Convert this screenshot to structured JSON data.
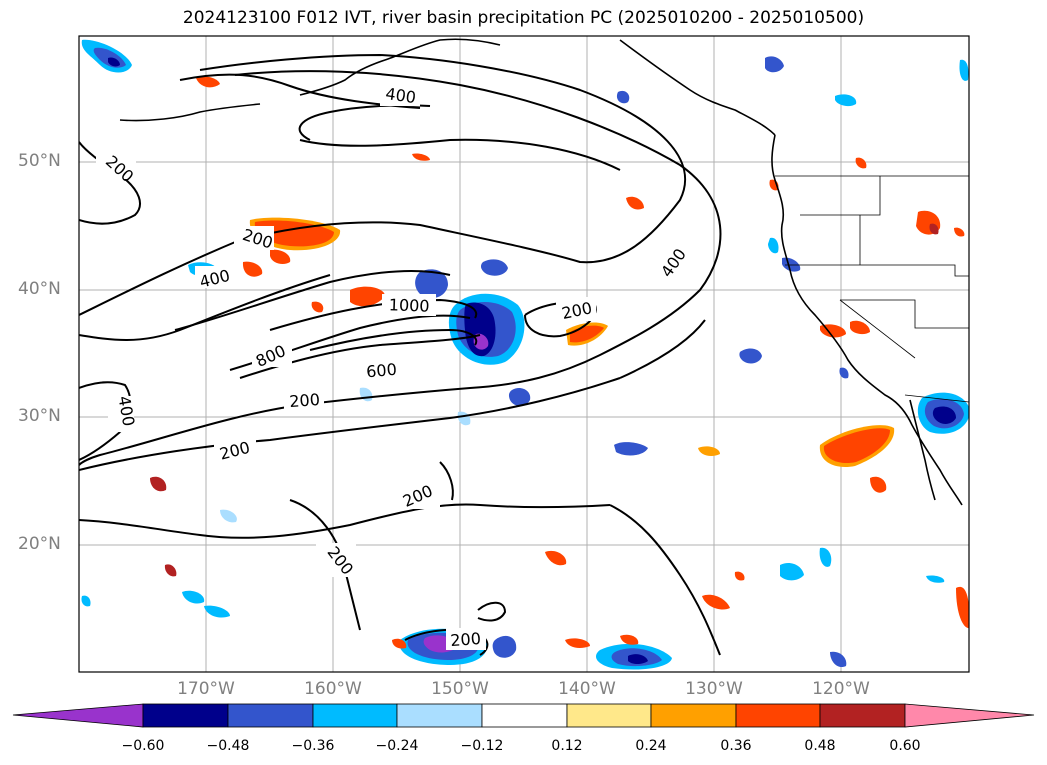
{
  "title": "2024123100 F012 IVT, river basin precipitation PC (2025010200 - 2025010500)",
  "latitude_labels": [
    "50°N",
    "40°N",
    "30°N",
    "20°N"
  ],
  "longitude_labels": [
    "170°W",
    "160°W",
    "150°W",
    "140°W",
    "130°W",
    "120°W"
  ],
  "ivt_contour_labels": [
    "400",
    "200",
    "200",
    "400",
    "1000",
    "200",
    "400",
    "800",
    "600",
    "200",
    "400",
    "200",
    "200",
    "200",
    "200"
  ],
  "colorbar": {
    "ticks": [
      "−0.60",
      "−0.48",
      "−0.36",
      "−0.24",
      "−0.12",
      "0.12",
      "0.24",
      "0.36",
      "0.48",
      "0.60"
    ],
    "colors": [
      "#9933cc",
      "#00008b",
      "#3355cc",
      "#00bbff",
      "#aadeff",
      "#ffffff",
      "#ffe88a",
      "#ffa000",
      "#ff4400",
      "#b22222",
      "#ff88aa"
    ]
  },
  "colors": {
    "contour": "#000000",
    "grid": "#b0b0b0",
    "tick_label": "#808080"
  }
}
